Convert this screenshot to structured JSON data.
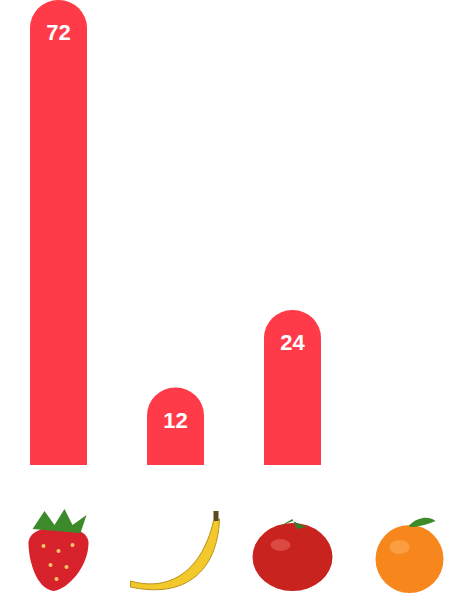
{
  "chart_data": {
    "type": "bar",
    "categories": [
      null,
      null,
      null,
      null
    ],
    "values": [
      72,
      12,
      24,
      null
    ],
    "color": "#ff3b4a",
    "ylim": [
      0,
      72
    ],
    "data_labels": true,
    "tick_labels": false
  }
}
